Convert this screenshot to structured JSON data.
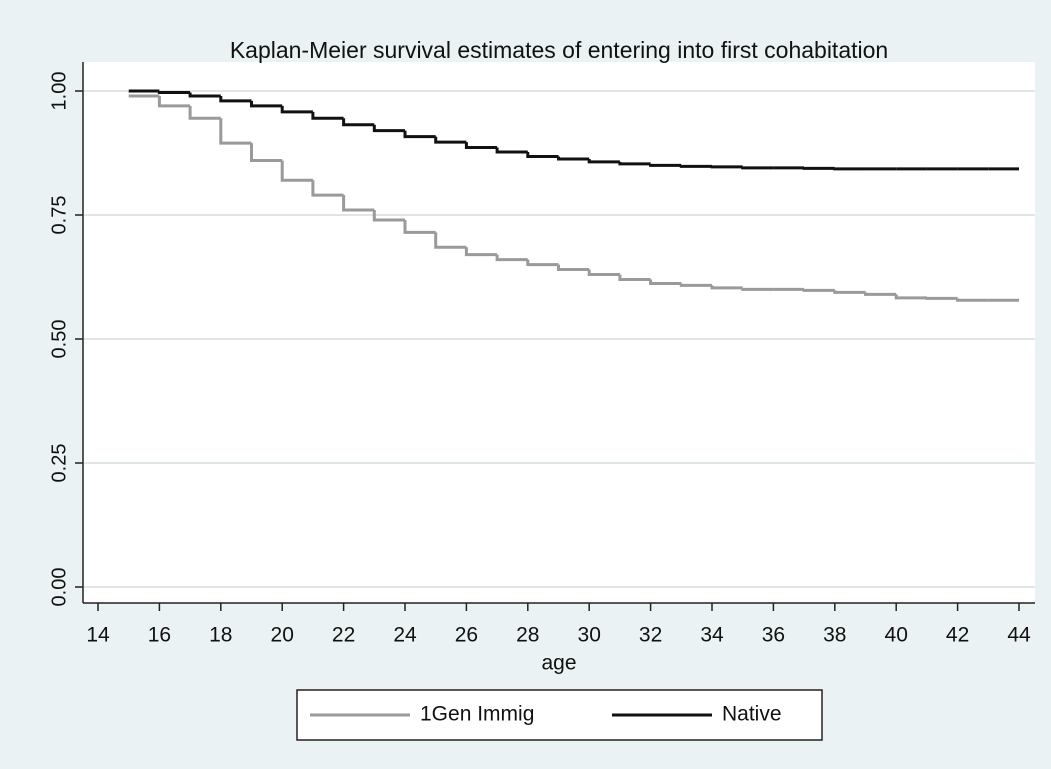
{
  "chart_data": {
    "type": "step",
    "title": "Kaplan-Meier survival estimates of entering into first cohabitation",
    "x_label": "age",
    "x": [
      15,
      16,
      17,
      18,
      19,
      20,
      21,
      22,
      23,
      24,
      25,
      26,
      27,
      28,
      29,
      30,
      31,
      32,
      33,
      34,
      35,
      36,
      37,
      38,
      39,
      40,
      41,
      42,
      43,
      44
    ],
    "series": [
      {
        "name": "1Gen Immig",
        "color": "#9a9a9a",
        "values": [
          0.99,
          0.97,
          0.945,
          0.895,
          0.86,
          0.82,
          0.79,
          0.76,
          0.74,
          0.715,
          0.685,
          0.67,
          0.66,
          0.65,
          0.64,
          0.63,
          0.62,
          0.612,
          0.608,
          0.603,
          0.6,
          0.6,
          0.598,
          0.594,
          0.59,
          0.583,
          0.582,
          0.578,
          0.578,
          0.578
        ]
      },
      {
        "name": "Native",
        "color": "#111111",
        "values": [
          1.0,
          0.997,
          0.99,
          0.98,
          0.97,
          0.958,
          0.945,
          0.932,
          0.92,
          0.908,
          0.897,
          0.886,
          0.877,
          0.868,
          0.863,
          0.857,
          0.853,
          0.85,
          0.848,
          0.847,
          0.845,
          0.845,
          0.844,
          0.843,
          0.843,
          0.843,
          0.843,
          0.843,
          0.843,
          0.843
        ]
      }
    ],
    "xlim": [
      14,
      44
    ],
    "xticks": [
      14,
      16,
      18,
      20,
      22,
      24,
      26,
      28,
      30,
      32,
      34,
      36,
      38,
      40,
      42,
      44
    ],
    "ylim": [
      0,
      1
    ],
    "yticks": [
      {
        "value": 0,
        "label": "0.00"
      },
      0.25,
      {
        "value": 0.5,
        "label": "0.50"
      },
      0.75,
      {
        "value": 1,
        "label": "1.00"
      }
    ],
    "grid": true
  }
}
